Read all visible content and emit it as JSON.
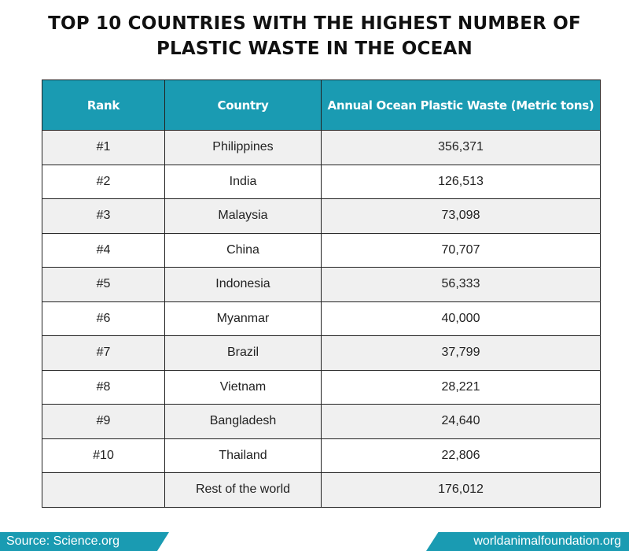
{
  "title_line1": "TOP 10 COUNTRIES WITH THE HIGHEST NUMBER OF",
  "title_line2": "PLASTIC WASTE IN THE OCEAN",
  "accent_color": "#1a9bb2",
  "chart_data": {
    "type": "table",
    "columns": [
      "Rank",
      "Country",
      "Annual Ocean Plastic Waste (Metric tons)"
    ],
    "rows": [
      {
        "rank": "#1",
        "country": "Philippines",
        "value": "356,371"
      },
      {
        "rank": "#2",
        "country": "India",
        "value": "126,513"
      },
      {
        "rank": "#3",
        "country": "Malaysia",
        "value": "73,098"
      },
      {
        "rank": "#4",
        "country": "China",
        "value": "70,707"
      },
      {
        "rank": "#5",
        "country": "Indonesia",
        "value": "56,333"
      },
      {
        "rank": "#6",
        "country": "Myanmar",
        "value": "40,000"
      },
      {
        "rank": "#7",
        "country": "Brazil",
        "value": "37,799"
      },
      {
        "rank": "#8",
        "country": "Vietnam",
        "value": "28,221"
      },
      {
        "rank": "#9",
        "country": "Bangladesh",
        "value": "24,640"
      },
      {
        "rank": "#10",
        "country": "Thailand",
        "value": "22,806"
      },
      {
        "rank": "",
        "country": "Rest of the world",
        "value": "176,012"
      }
    ]
  },
  "footer": {
    "source": "Source: Science.org",
    "site": "worldanimalfoundation.org"
  }
}
